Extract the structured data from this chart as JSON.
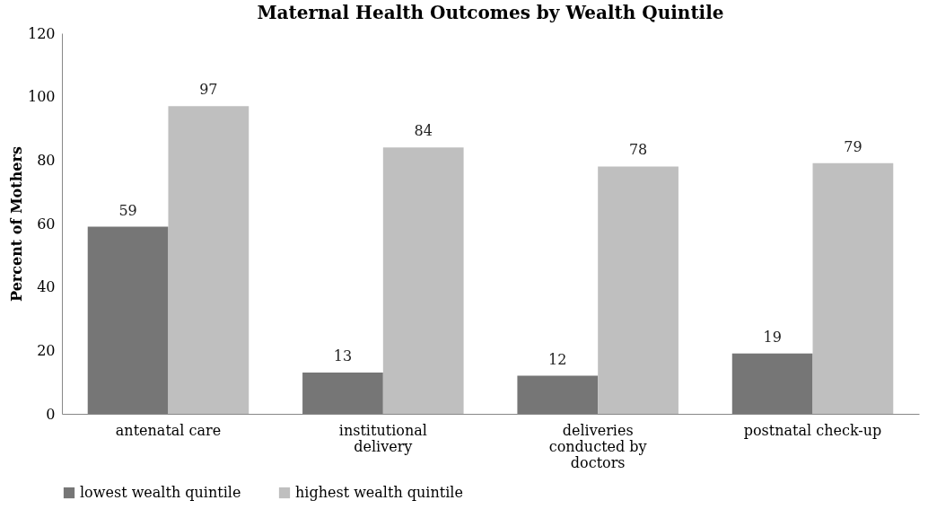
{
  "chart_data": {
    "type": "bar",
    "title": "Maternal Health Outcomes by Wealth Quintile",
    "ylabel": "Percent of Mothers",
    "categories": [
      "antenatal care",
      "institutional delivery",
      "deliveries conducted by doctors",
      "postnatal check-up"
    ],
    "series": [
      {
        "name": "lowest wealth quintile",
        "color": "#767676",
        "values": [
          59,
          13,
          12,
          19
        ]
      },
      {
        "name": "highest wealth quintile",
        "color": "#bfbfbf",
        "values": [
          97,
          84,
          78,
          79
        ]
      }
    ],
    "ylim": [
      0,
      120
    ],
    "yticks": [
      0,
      20,
      40,
      60,
      80,
      100,
      120
    ],
    "grid": false,
    "legend": "bottom",
    "data_labels": true
  }
}
